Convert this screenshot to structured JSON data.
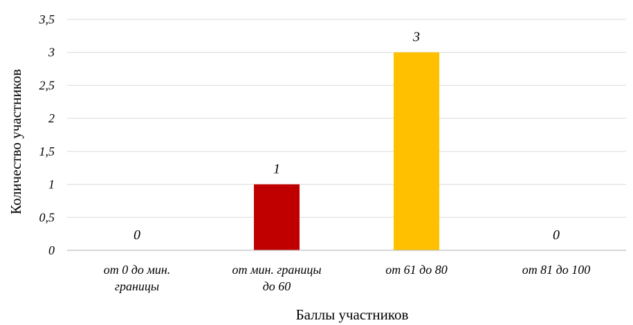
{
  "chart_data": {
    "type": "bar",
    "categories": [
      [
        "от 0 до мин.",
        "границы"
      ],
      [
        "от мин. границы",
        "до 60"
      ],
      [
        "от 61 до 80"
      ],
      [
        "от 81 до 100"
      ]
    ],
    "values": [
      0,
      1,
      3,
      0
    ],
    "data_labels": [
      "0",
      "1",
      "3",
      "0"
    ],
    "bar_colors": [
      "#c00000",
      "#c00000",
      "#ffc000",
      "#ffc000"
    ],
    "title": "",
    "xlabel": "Баллы участников",
    "ylabel": "Количество участников",
    "ylim": [
      0,
      3.5
    ],
    "yticks": [
      0,
      0.5,
      1,
      1.5,
      2,
      2.5,
      3,
      3.5
    ],
    "ytick_labels": [
      "0",
      "0,5",
      "1",
      "1,5",
      "2",
      "2,5",
      "3",
      "3,5"
    ],
    "grid": true,
    "legend": "none"
  }
}
